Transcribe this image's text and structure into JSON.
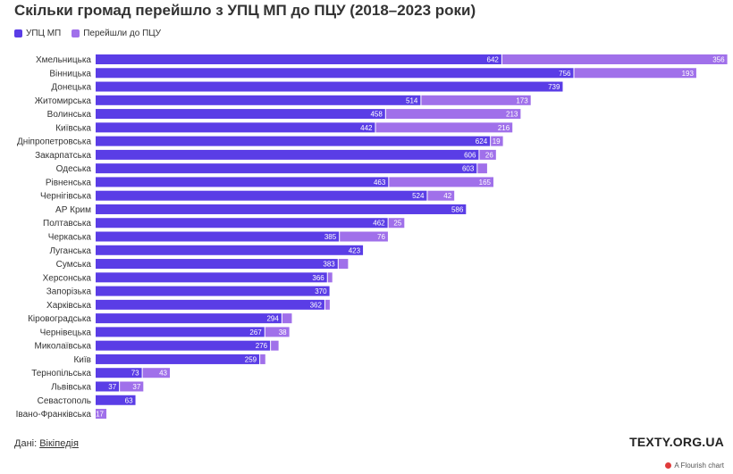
{
  "header": {
    "title": "Скільки громад перейшло з УПЦ МП до ПЦУ (2018–2023 роки)"
  },
  "footer": {
    "source_prefix": "Дані:",
    "source_link": "Вікіпедія",
    "brand": "TEXTY.ORG.UA",
    "attribution": "A Flourish chart"
  },
  "colors": {
    "series_upc": "#5a3de6",
    "series_pcu": "#a070ea"
  },
  "chart_data": {
    "type": "bar",
    "orientation": "horizontal",
    "stacked": true,
    "title": "Скільки громад перейшло з УПЦ МП до ПЦУ (2018–2023 роки)",
    "legend": [
      "УПЦ МП",
      "Перейшли до ПЦУ"
    ],
    "legend_position": "top-left",
    "categories": [
      "Хмельницька",
      "Вінницька",
      "Донецька",
      "Житомирська",
      "Волинська",
      "Київська",
      "Дніпропетровська",
      "Закарпатська",
      "Одеська",
      "Рівненська",
      "Чернігівська",
      "АР Крим",
      "Полтавська",
      "Черкаська",
      "Луганська",
      "Сумська",
      "Херсонська",
      "Запорізька",
      "Харківська",
      "Кіровоградська",
      "Чернівецька",
      "Миколаївська",
      "Київ",
      "Тернопільська",
      "Львівська",
      "Севастополь",
      "Івано-Франківська"
    ],
    "series": [
      {
        "name": "УПЦ МП",
        "values": [
          642,
          756,
          739,
          514,
          458,
          442,
          624,
          606,
          603,
          463,
          524,
          586,
          462,
          385,
          423,
          383,
          366,
          370,
          362,
          294,
          267,
          276,
          259,
          73,
          37,
          63,
          0
        ]
      },
      {
        "name": "Перейшли до ПЦУ",
        "values": [
          356,
          193,
          0,
          173,
          213,
          216,
          19,
          26,
          15,
          165,
          42,
          0,
          25,
          76,
          0,
          15,
          7,
          0,
          7,
          15,
          38,
          12,
          8,
          43,
          37,
          0,
          17
        ]
      }
    ],
    "value_labels": [
      [
        "642",
        "356"
      ],
      [
        "756",
        "193"
      ],
      [
        "739",
        ""
      ],
      [
        "514",
        "173"
      ],
      [
        "458",
        "213"
      ],
      [
        "442",
        "216"
      ],
      [
        "624",
        "19"
      ],
      [
        "606",
        "26"
      ],
      [
        "603",
        ""
      ],
      [
        "463",
        "165"
      ],
      [
        "524",
        "42"
      ],
      [
        "586",
        ""
      ],
      [
        "462",
        "25"
      ],
      [
        "385",
        "76"
      ],
      [
        "423",
        ""
      ],
      [
        "383",
        ""
      ],
      [
        "366",
        ""
      ],
      [
        "370",
        ""
      ],
      [
        "362",
        ""
      ],
      [
        "294",
        ""
      ],
      [
        "267",
        "38"
      ],
      [
        "276",
        ""
      ],
      [
        "259",
        ""
      ],
      [
        "73",
        "43"
      ],
      [
        "37",
        "37"
      ],
      [
        "63",
        ""
      ],
      [
        "",
        "17"
      ]
    ],
    "xlim": [
      0,
      1000
    ],
    "grid": false
  }
}
